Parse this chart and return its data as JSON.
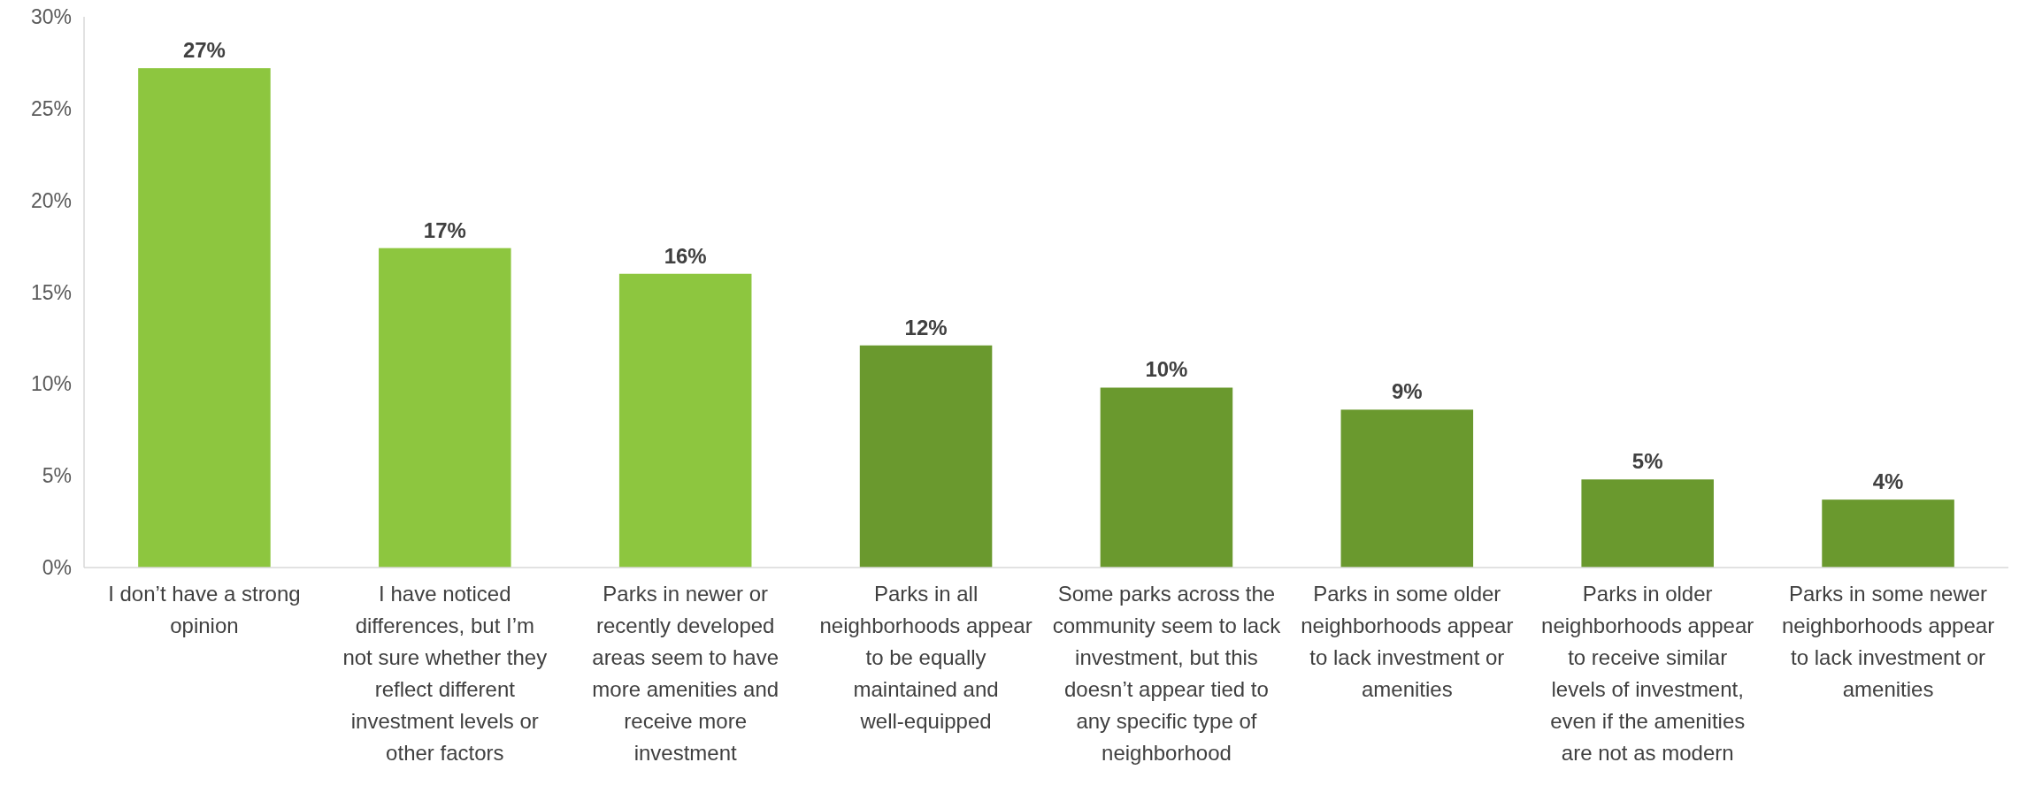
{
  "chart_data": {
    "type": "bar",
    "categories": [
      "I don’t have a strong opinion",
      "I have noticed differences, but I’m not sure whether they reflect different investment levels or other factors",
      "Parks in newer or recently developed areas seem to have more amenities and receive more investment",
      "Parks in all neighborhoods appear to be equally maintained and well-equipped",
      "Some parks across the community seem to lack investment, but this doesn’t appear tied to any specific type of neighborhood",
      "Parks in some older neighborhoods appear to lack investment or amenities",
      "Parks in older neighborhoods appear to receive similar levels of investment, even if the amenities are not as modern",
      "Parks in some newer neighborhoods appear to lack investment or amenities"
    ],
    "values": [
      27.2,
      17.4,
      16.0,
      12.1,
      9.8,
      8.6,
      4.8,
      3.7
    ],
    "value_labels": [
      "27%",
      "17%",
      "16%",
      "12%",
      "10%",
      "9%",
      "5%",
      "4%"
    ],
    "colors": [
      "#8dc63f",
      "#8dc63f",
      "#8dc63f",
      "#6a992e",
      "#6a992e",
      "#6a992e",
      "#6a992e",
      "#6a992e"
    ],
    "ylim": [
      0,
      30
    ],
    "yticks": [
      {
        "value": 0,
        "label": "0%"
      },
      {
        "value": 5,
        "label": "5%"
      },
      {
        "value": 10,
        "label": "10%"
      },
      {
        "value": 15,
        "label": "15%"
      },
      {
        "value": 20,
        "label": "20%"
      },
      {
        "value": 25,
        "label": "25%"
      },
      {
        "value": 30,
        "label": "30%"
      }
    ],
    "grid": false
  }
}
